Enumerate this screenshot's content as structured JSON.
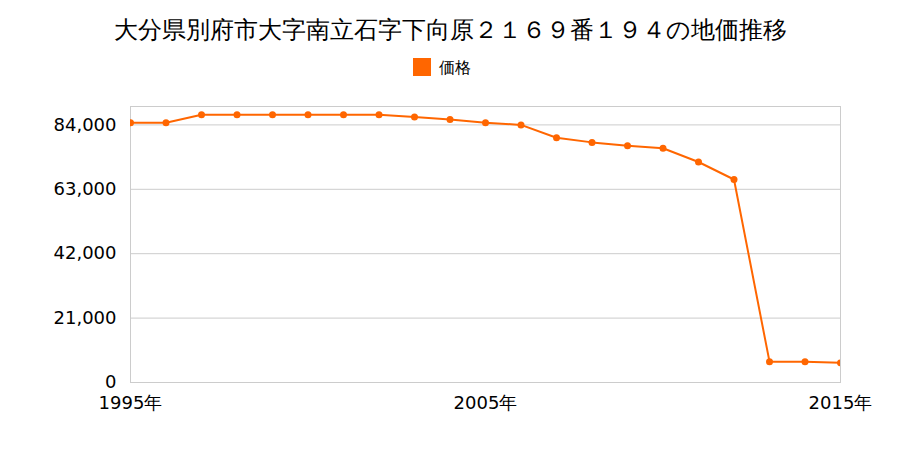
{
  "chart_data": {
    "type": "line",
    "title": "大分県別府市大字南立石字下向原２１６９番１９４の地価推移",
    "x": [
      1995,
      1996,
      1997,
      1998,
      1999,
      2000,
      2001,
      2002,
      2003,
      2004,
      2005,
      2006,
      2007,
      2008,
      2009,
      2010,
      2011,
      2012,
      2013,
      2014,
      2015
    ],
    "series": [
      {
        "name": "価格",
        "color": "#ff6600",
        "marker": "circle",
        "values": [
          84700,
          84700,
          87300,
          87300,
          87300,
          87300,
          87300,
          87300,
          86600,
          85800,
          84700,
          84000,
          79800,
          78300,
          77200,
          76400,
          71900,
          66200,
          6800,
          6800,
          6400
        ]
      }
    ],
    "xlim": [
      1995,
      2015
    ],
    "xticks": [
      {
        "value": 1995,
        "label": "1995年"
      },
      {
        "value": 2005,
        "label": "2005年"
      },
      {
        "value": 2015,
        "label": "2015年"
      }
    ],
    "ylim": [
      0,
      90000
    ],
    "yticks": [
      0,
      {
        "value": 21000,
        "label": "21,000"
      },
      {
        "value": 42000,
        "label": "42,000"
      },
      {
        "value": 63000,
        "label": "63,000"
      },
      {
        "value": 84000,
        "label": "84,000"
      }
    ],
    "grid": true,
    "legend": "top"
  }
}
